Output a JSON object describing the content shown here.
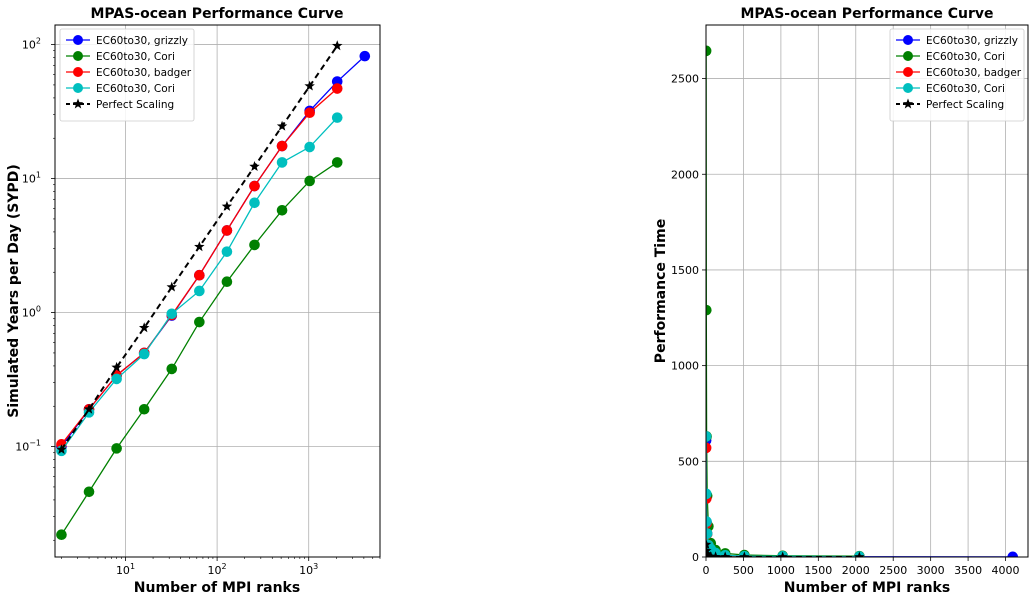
{
  "chart_data": [
    {
      "type": "line",
      "title": "MPAS-ocean Performance Curve",
      "xlabel": "Number of MPI ranks",
      "ylabel": "Simulated Years per Day (SYPD)",
      "xscale": "log",
      "yscale": "log",
      "xlim": [
        1.7,
        6000
      ],
      "ylim": [
        0.015,
        140
      ],
      "xticks": [
        {
          "value": 10,
          "base": "10",
          "exp": "1"
        },
        {
          "value": 100,
          "base": "10",
          "exp": "2"
        },
        {
          "value": 1000,
          "base": "10",
          "exp": "3"
        }
      ],
      "yticks": [
        {
          "value": 0.1,
          "base": "10",
          "exp": "−1"
        },
        {
          "value": 1,
          "base": "10",
          "exp": "0"
        },
        {
          "value": 10,
          "base": "10",
          "exp": "1"
        },
        {
          "value": 100,
          "base": "10",
          "exp": "2"
        }
      ],
      "grid": true,
      "legend_position": "top-left",
      "series": [
        {
          "name": "EC60to30, grizzly",
          "color": "#0000ff",
          "marker": "circle",
          "dashed": false,
          "x": [
            2,
            4,
            8,
            16,
            32,
            64,
            128,
            256,
            512,
            1024,
            2048,
            4096
          ],
          "y": [
            0.1,
            0.19,
            0.34,
            0.5,
            0.95,
            1.9,
            4.1,
            8.8,
            17.5,
            32,
            53,
            82
          ]
        },
        {
          "name": "EC60to30, Cori",
          "color": "#008000",
          "marker": "circle",
          "dashed": false,
          "x": [
            2,
            4,
            8,
            16,
            32,
            64,
            128,
            256,
            512,
            1024,
            2048
          ],
          "y": [
            0.022,
            0.046,
            0.097,
            0.19,
            0.38,
            0.85,
            1.7,
            3.2,
            5.8,
            9.6,
            13.2
          ]
        },
        {
          "name": "EC60to30, badger",
          "color": "#ff0000",
          "marker": "circle",
          "dashed": false,
          "x": [
            2,
            4,
            8,
            16,
            32,
            64,
            128,
            256,
            512,
            1024,
            2048
          ],
          "y": [
            0.104,
            0.19,
            0.34,
            0.5,
            0.96,
            1.9,
            4.1,
            8.8,
            17.5,
            31,
            47
          ]
        },
        {
          "name": "EC60to30, Cori",
          "color": "#00bfbf",
          "marker": "circle",
          "dashed": false,
          "x": [
            2,
            4,
            8,
            16,
            32,
            64,
            128,
            256,
            512,
            1024,
            2048
          ],
          "y": [
            0.093,
            0.18,
            0.32,
            0.49,
            0.98,
            1.45,
            2.85,
            6.6,
            13.2,
            17.2,
            28.5
          ]
        },
        {
          "name": "Perfect Scaling",
          "color": "#000000",
          "marker": "star",
          "dashed": true,
          "x": [
            2,
            4,
            8,
            16,
            32,
            64,
            128,
            256,
            512,
            1024,
            2048
          ],
          "y": [
            0.095,
            0.19,
            0.39,
            0.77,
            1.55,
            3.1,
            6.2,
            12.3,
            24.6,
            49,
            98
          ]
        }
      ]
    },
    {
      "type": "line",
      "title": "MPAS-ocean Performance Curve",
      "xlabel": "Number of MPI ranks",
      "ylabel": "Performance Time",
      "xscale": "linear",
      "yscale": "linear",
      "xlim": [
        0,
        4300
      ],
      "ylim": [
        0,
        2780
      ],
      "xticks": [
        0,
        500,
        1000,
        1500,
        2000,
        2500,
        3000,
        3500,
        4000
      ],
      "yticks": [
        0,
        500,
        1000,
        1500,
        2000,
        2500
      ],
      "grid": true,
      "legend_position": "top-right",
      "series": [
        {
          "name": "EC60to30, grizzly",
          "color": "#0000ff",
          "marker": "circle",
          "dashed": false,
          "x": [
            2,
            4,
            8,
            16,
            32,
            64,
            128,
            256,
            512,
            1024,
            2048,
            4096
          ],
          "y": [
            610,
            320,
            180,
            122,
            64,
            32,
            15,
            7,
            3.5,
            1.9,
            1.2,
            0.75
          ]
        },
        {
          "name": "EC60to30, Cori",
          "color": "#008000",
          "marker": "circle",
          "dashed": false,
          "x": [
            2,
            4,
            8,
            16,
            32,
            64,
            128,
            256,
            512,
            1024,
            2048
          ],
          "y": [
            2645,
            1290,
            630,
            320,
            160,
            72,
            36,
            19,
            10.5,
            6.3,
            4.6
          ]
        },
        {
          "name": "EC60to30, badger",
          "color": "#ff0000",
          "marker": "circle",
          "dashed": false,
          "x": [
            2,
            4,
            8,
            16,
            32,
            64,
            128,
            256,
            512,
            1024,
            2048
          ],
          "y": [
            570,
            305,
            175,
            120,
            62,
            31,
            15,
            7,
            3.5,
            2,
            1.3
          ]
        },
        {
          "name": "EC60to30, Cori",
          "color": "#00bfbf",
          "marker": "circle",
          "dashed": false,
          "x": [
            2,
            4,
            8,
            16,
            32,
            64,
            128,
            256,
            512,
            1024,
            2048
          ],
          "y": [
            630,
            330,
            185,
            122,
            62,
            42,
            21,
            9,
            4.5,
            3.5,
            2.1
          ]
        },
        {
          "name": "Perfect Scaling",
          "color": "#000000",
          "marker": "star",
          "dashed": true,
          "x": [
            2,
            4,
            8,
            16,
            32,
            64,
            128,
            256,
            512,
            1024,
            2048
          ],
          "y": [
            65,
            32,
            16,
            8,
            4,
            2,
            1,
            0.5,
            0.25,
            0.13,
            0.06
          ]
        }
      ]
    }
  ]
}
